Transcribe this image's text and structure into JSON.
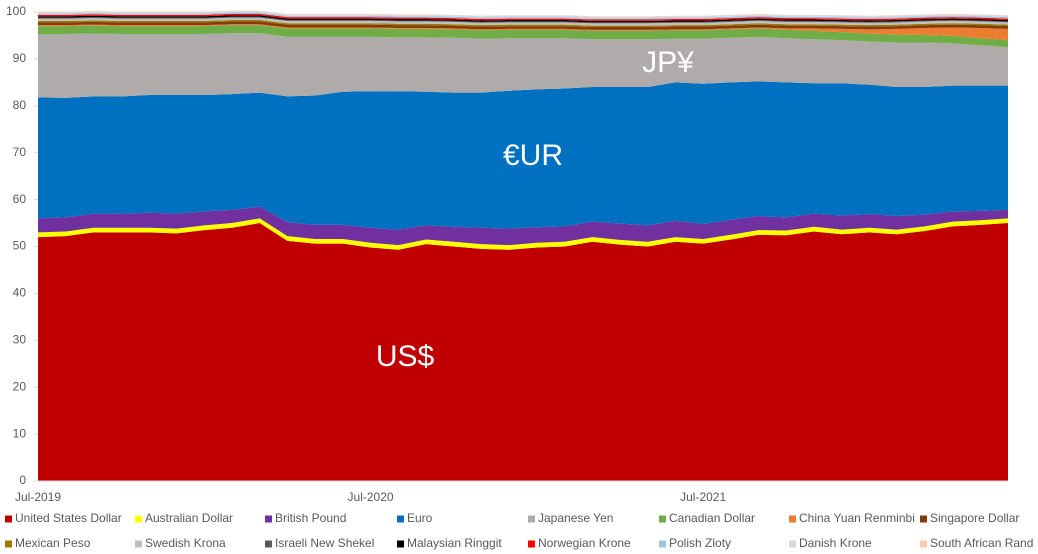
{
  "chart_data": {
    "type": "stacked-area",
    "annotations": [
      "US$",
      "€UR",
      "JP¥"
    ],
    "categories": [
      "Jul-2019",
      null,
      null,
      null,
      null,
      null,
      null,
      null,
      null,
      null,
      null,
      null,
      "Jul-2020",
      null,
      null,
      null,
      null,
      null,
      null,
      null,
      null,
      null,
      null,
      null,
      "Jul-2021",
      null,
      null,
      null,
      null,
      null,
      null,
      null,
      null,
      null,
      null,
      null
    ],
    "ylim": [
      0,
      100
    ],
    "yticks": [
      0,
      10,
      20,
      30,
      40,
      50,
      60,
      70,
      80,
      90,
      100
    ],
    "series": [
      {
        "name": "United States Dollar",
        "color": "#c00000",
        "values": [
          52,
          52.2,
          53,
          53,
          53,
          52.8,
          53.5,
          54,
          55,
          51.2,
          50.6,
          50.6,
          49.8,
          49.3,
          50.5,
          50,
          49.5,
          49.3,
          49.8,
          50,
          51,
          50.4,
          50,
          51,
          50.6,
          51.5,
          52.5,
          52.4,
          53.2,
          52.6,
          53,
          52.6,
          53.3,
          54.3,
          54.6,
          55
        ]
      },
      {
        "name": "Australian Dollar",
        "color": "#ffff00",
        "values": [
          1,
          1,
          1,
          1,
          1,
          1,
          1,
          1,
          1,
          1,
          1,
          1,
          1,
          1,
          1,
          1,
          1,
          1,
          1,
          1,
          1,
          1,
          1,
          1,
          1,
          1,
          1,
          1,
          1,
          1,
          1,
          1,
          1,
          1,
          1,
          1
        ]
      },
      {
        "name": "British Pound",
        "color": "#7030a0",
        "values": [
          3,
          3,
          3,
          3,
          3.2,
          3.2,
          3,
          2.8,
          2.5,
          3,
          3,
          3,
          3.2,
          3.3,
          3,
          3.2,
          3.5,
          3.5,
          3.3,
          3.3,
          3.3,
          3.5,
          3.5,
          3.5,
          3.2,
          3.2,
          3,
          2.8,
          2.8,
          3,
          2.9,
          2.9,
          2.5,
          2.2,
          2,
          1.8
        ]
      },
      {
        "name": "Euro",
        "color": "#0070c0",
        "values": [
          25.8,
          25.5,
          25,
          25,
          25.1,
          25.3,
          24.8,
          24.7,
          24.3,
          26.8,
          27.6,
          28.4,
          29.1,
          29.5,
          28.5,
          28.6,
          28.8,
          29.4,
          29.4,
          29.4,
          28.7,
          29.1,
          29.5,
          29.5,
          29.9,
          29.3,
          28.7,
          28.8,
          27.8,
          28.2,
          27.6,
          27.5,
          27.2,
          26.8,
          26.7,
          26.5
        ]
      },
      {
        "name": "Japanese Yen",
        "color": "#afabab",
        "values": [
          13.5,
          13.6,
          13.4,
          13.3,
          13,
          13,
          13,
          13,
          12.7,
          12.7,
          12.5,
          11.7,
          11.6,
          11.5,
          11.6,
          11.7,
          11.5,
          11.2,
          10.9,
          10.7,
          10.2,
          10.2,
          10.2,
          9.3,
          9.6,
          9.5,
          9.5,
          9.4,
          9.4,
          9.2,
          9.2,
          9.5,
          9.5,
          9,
          8.6,
          8.2
        ]
      },
      {
        "name": "Canadian Dollar",
        "color": "#70ad47",
        "values": [
          1.7,
          1.7,
          1.7,
          1.7,
          1.7,
          1.7,
          1.7,
          1.7,
          1.7,
          1.8,
          1.8,
          1.8,
          1.8,
          1.8,
          1.8,
          1.8,
          1.8,
          1.8,
          1.8,
          1.8,
          1.8,
          1.8,
          1.8,
          1.8,
          1.8,
          1.8,
          1.8,
          1.8,
          1.8,
          1.7,
          1.7,
          1.7,
          1.6,
          1.6,
          1.5,
          1.5
        ]
      },
      {
        "name": "China Yuan Renminbi",
        "color": "#ed7d31",
        "values": [
          0.2,
          0.2,
          0.2,
          0.2,
          0.2,
          0.2,
          0.2,
          0.2,
          0.2,
          0.2,
          0.2,
          0.2,
          0.2,
          0.2,
          0.2,
          0.2,
          0.2,
          0.2,
          0.2,
          0.2,
          0.2,
          0.2,
          0.2,
          0.2,
          0.2,
          0.2,
          0.2,
          0.3,
          0.5,
          0.7,
          0.9,
          1.2,
          1.5,
          1.8,
          2.2,
          2.4
        ]
      },
      {
        "name": "Singapore Dollar",
        "color": "#843c0c",
        "values": [
          0.6,
          0.6,
          0.6,
          0.6,
          0.6,
          0.6,
          0.6,
          0.6,
          0.6,
          0.6,
          0.6,
          0.6,
          0.6,
          0.6,
          0.6,
          0.6,
          0.6,
          0.6,
          0.6,
          0.6,
          0.6,
          0.6,
          0.6,
          0.6,
          0.6,
          0.6,
          0.6,
          0.6,
          0.6,
          0.6,
          0.6,
          0.6,
          0.6,
          0.6,
          0.6,
          0.6
        ]
      },
      {
        "name": "Mexican Peso",
        "color": "#9c7a00",
        "values": [
          0.3,
          0.3,
          0.3,
          0.3,
          0.3,
          0.3,
          0.3,
          0.3,
          0.3,
          0.3,
          0.3,
          0.3,
          0.3,
          0.3,
          0.3,
          0.3,
          0.3,
          0.3,
          0.3,
          0.3,
          0.3,
          0.3,
          0.3,
          0.3,
          0.3,
          0.3,
          0.3,
          0.3,
          0.3,
          0.3,
          0.3,
          0.3,
          0.3,
          0.3,
          0.3,
          0.3
        ]
      },
      {
        "name": "Swedish Krona",
        "color": "#bfbfbf",
        "values": [
          0.5,
          0.5,
          0.5,
          0.5,
          0.5,
          0.5,
          0.5,
          0.5,
          0.5,
          0.5,
          0.5,
          0.5,
          0.5,
          0.5,
          0.5,
          0.5,
          0.5,
          0.5,
          0.5,
          0.5,
          0.5,
          0.5,
          0.5,
          0.5,
          0.5,
          0.5,
          0.5,
          0.5,
          0.5,
          0.5,
          0.5,
          0.5,
          0.5,
          0.5,
          0.5,
          0.5
        ]
      },
      {
        "name": "Israeli New Shekel",
        "color": "#595959",
        "values": [
          0.2,
          0.2,
          0.2,
          0.2,
          0.2,
          0.2,
          0.2,
          0.2,
          0.2,
          0.2,
          0.2,
          0.2,
          0.2,
          0.2,
          0.2,
          0.2,
          0.2,
          0.2,
          0.2,
          0.2,
          0.2,
          0.2,
          0.2,
          0.2,
          0.2,
          0.2,
          0.2,
          0.2,
          0.2,
          0.2,
          0.2,
          0.2,
          0.2,
          0.2,
          0.2,
          0.2
        ]
      },
      {
        "name": "Malaysian Ringgit",
        "color": "#000000",
        "values": [
          0.3,
          0.3,
          0.3,
          0.3,
          0.3,
          0.3,
          0.3,
          0.3,
          0.3,
          0.3,
          0.3,
          0.3,
          0.3,
          0.3,
          0.3,
          0.3,
          0.3,
          0.3,
          0.3,
          0.3,
          0.3,
          0.3,
          0.3,
          0.3,
          0.3,
          0.3,
          0.3,
          0.3,
          0.3,
          0.3,
          0.3,
          0.3,
          0.3,
          0.3,
          0.3,
          0.3
        ]
      },
      {
        "name": "Norwegian Krone",
        "color": "#ff0000",
        "values": [
          0.3,
          0.3,
          0.3,
          0.3,
          0.3,
          0.3,
          0.3,
          0.3,
          0.3,
          0.3,
          0.3,
          0.3,
          0.3,
          0.3,
          0.3,
          0.3,
          0.3,
          0.3,
          0.3,
          0.3,
          0.3,
          0.3,
          0.3,
          0.3,
          0.3,
          0.3,
          0.3,
          0.3,
          0.3,
          0.3,
          0.3,
          0.3,
          0.3,
          0.3,
          0.3,
          0.3
        ]
      },
      {
        "name": "Polish Zloty",
        "color": "#9dc3e6",
        "values": [
          0.3,
          0.3,
          0.3,
          0.3,
          0.3,
          0.3,
          0.3,
          0.3,
          0.3,
          0.3,
          0.3,
          0.3,
          0.3,
          0.3,
          0.3,
          0.3,
          0.3,
          0.3,
          0.3,
          0.3,
          0.3,
          0.3,
          0.3,
          0.3,
          0.3,
          0.3,
          0.3,
          0.3,
          0.3,
          0.3,
          0.3,
          0.3,
          0.3,
          0.3,
          0.3,
          0.3
        ]
      },
      {
        "name": "Danish Krone",
        "color": "#d9d9d9",
        "values": [
          0.3,
          0.3,
          0.3,
          0.3,
          0.3,
          0.3,
          0.3,
          0.3,
          0.3,
          0.3,
          0.3,
          0.3,
          0.3,
          0.3,
          0.3,
          0.3,
          0.3,
          0.3,
          0.3,
          0.3,
          0.3,
          0.3,
          0.3,
          0.3,
          0.3,
          0.3,
          0.3,
          0.3,
          0.3,
          0.3,
          0.3,
          0.3,
          0.3,
          0.3,
          0.3,
          0.3
        ]
      },
      {
        "name": "South African Rand",
        "color": "#f8cbad",
        "values": [
          0.1,
          0.1,
          0.1,
          0.1,
          0.1,
          0.1,
          0.1,
          0.1,
          0.1,
          0.1,
          0.1,
          0.1,
          0.1,
          0.1,
          0.1,
          0.1,
          0.1,
          0.1,
          0.1,
          0.1,
          0.1,
          0.1,
          0.1,
          0.1,
          0.1,
          0.1,
          0.1,
          0.1,
          0.1,
          0.1,
          0.1,
          0.1,
          0.1,
          0.1,
          0.1,
          0.1
        ]
      }
    ]
  }
}
